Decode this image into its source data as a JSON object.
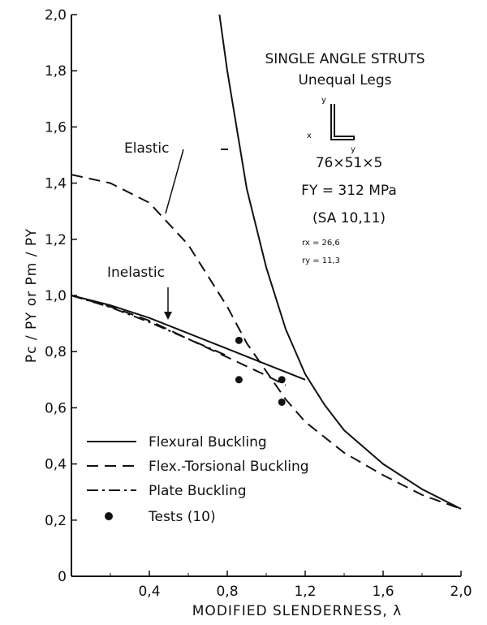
{
  "chart_data": {
    "type": "line",
    "xlabel": "MODIFIED SLENDERNESS, λ",
    "ylabel": "Pc / PY or Pm / PY",
    "xlim": [
      0,
      2.0
    ],
    "ylim": [
      0,
      2.0
    ],
    "x_ticks": [
      "0,4",
      "0,8",
      "1,2",
      "1,6",
      "2,0"
    ],
    "y_ticks": [
      "0",
      "0,2",
      "0,4",
      "0,6",
      "0,8",
      "1,0",
      "1,2",
      "1,4",
      "1,6",
      "1,8",
      "2,0"
    ],
    "grid": false,
    "legend_position": "bottom-left",
    "series": [
      {
        "name": "Flexural Buckling",
        "style": "solid",
        "points": [
          [
            0,
            1.0
          ],
          [
            0.2,
            0.965
          ],
          [
            0.4,
            0.92
          ],
          [
            0.6,
            0.865
          ],
          [
            0.8,
            0.81
          ],
          [
            1.0,
            0.755
          ],
          [
            1.2,
            0.7
          ]
        ]
      },
      {
        "name": "Flexural Buckling",
        "style": "solid",
        "points": [
          [
            0.76,
            2.0
          ],
          [
            0.8,
            1.8
          ],
          [
            0.9,
            1.38
          ],
          [
            1.0,
            1.1
          ],
          [
            1.1,
            0.88
          ],
          [
            1.2,
            0.72
          ],
          [
            1.3,
            0.61
          ],
          [
            1.4,
            0.52
          ],
          [
            1.6,
            0.4
          ],
          [
            1.8,
            0.31
          ],
          [
            2.0,
            0.24
          ]
        ]
      },
      {
        "name": "Flex.-Torsional Buckling",
        "style": "dashed",
        "points": [
          [
            0,
            1.43
          ],
          [
            0.2,
            1.4
          ],
          [
            0.4,
            1.33
          ],
          [
            0.6,
            1.18
          ],
          [
            0.8,
            0.96
          ],
          [
            0.9,
            0.83
          ],
          [
            1.0,
            0.73
          ],
          [
            1.1,
            0.63
          ],
          [
            1.2,
            0.55
          ],
          [
            1.4,
            0.44
          ],
          [
            1.6,
            0.36
          ],
          [
            1.8,
            0.29
          ],
          [
            2.0,
            0.24
          ]
        ]
      },
      {
        "name": "Flex.-Torsional Buckling",
        "style": "dashed",
        "points": [
          [
            0,
            1.0
          ],
          [
            0.2,
            0.96
          ],
          [
            0.4,
            0.91
          ],
          [
            0.6,
            0.845
          ],
          [
            0.8,
            0.78
          ],
          [
            1.0,
            0.715
          ],
          [
            1.1,
            0.68
          ]
        ]
      },
      {
        "name": "Plate Buckling",
        "style": "dashdot",
        "points": [
          [
            0,
            1.0
          ],
          [
            0.2,
            0.958
          ],
          [
            0.4,
            0.905
          ],
          [
            0.6,
            0.845
          ],
          [
            0.8,
            0.785
          ]
        ]
      },
      {
        "name": "Tests (10)",
        "style": "markers",
        "points": [
          [
            0.86,
            0.84
          ],
          [
            0.86,
            0.7
          ],
          [
            1.08,
            0.7
          ],
          [
            1.08,
            0.62
          ]
        ]
      }
    ],
    "annotations": {
      "elastic": "Elastic",
      "inelastic": "Inelastic",
      "title_line1": "SINGLE ANGLE STRUTS",
      "title_line2": "Unequal Legs",
      "section": "76×51×5",
      "fy": "FY = 312 MPa",
      "ref": "(SA 10,11)",
      "rx": "rx = 26,6",
      "ry": "ry = 11,3",
      "axis_y": "y",
      "axis_x": "x"
    },
    "legend": [
      {
        "label": "Flexural Buckling",
        "style": "solid"
      },
      {
        "label": "Flex.-Torsional Buckling",
        "style": "dashed"
      },
      {
        "label": "Plate Buckling",
        "style": "dashdot"
      },
      {
        "label": "Tests (10)",
        "style": "markers"
      }
    ]
  }
}
